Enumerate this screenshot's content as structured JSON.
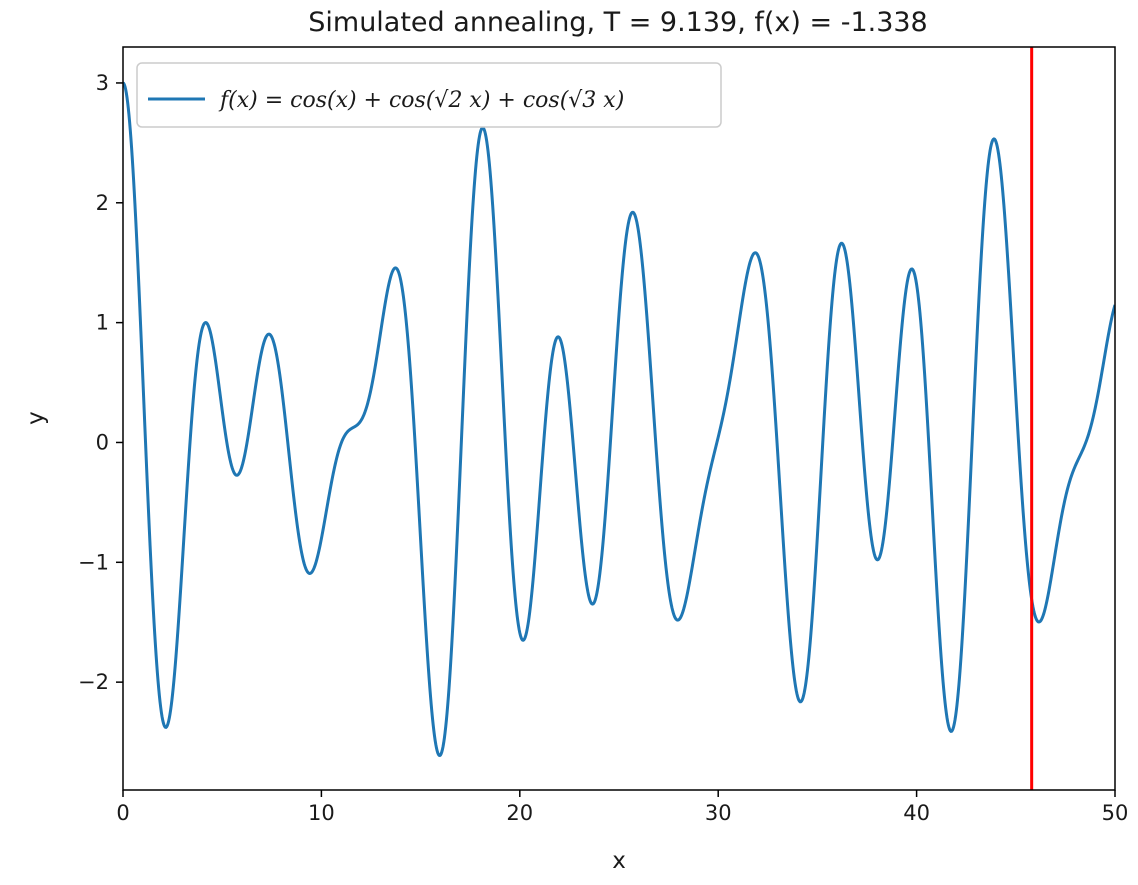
{
  "chart_data": {
    "type": "line",
    "title": "Simulated annealing, T = 9.139, f(x) = -1.338",
    "xlabel": "x",
    "ylabel": "y",
    "xlim": [
      0,
      50
    ],
    "ylim": [
      -2.9,
      3.3
    ],
    "xticks": [
      0,
      10,
      20,
      30,
      40,
      50
    ],
    "xtick_labels": [
      "0",
      "10",
      "20",
      "30",
      "40",
      "50"
    ],
    "yticks": [
      -2,
      -1,
      0,
      1,
      2,
      3
    ],
    "ytick_labels": [
      "−2",
      "−1",
      "0",
      "1",
      "2",
      "3"
    ],
    "grid": false,
    "legend_position": "upper-left",
    "series": [
      {
        "name": "f(x) = cos(x) + cos(√2 x) + cos(√3 x)",
        "color": "#1f77b4",
        "function": "cos(x) + cos(sqrt(2) x) + cos(sqrt(3) x)",
        "x_range": [
          0,
          50
        ],
        "sampled_points": [
          [
            0,
            3.0
          ],
          [
            2.1,
            -2.36
          ],
          [
            4.2,
            1.0
          ],
          [
            5.7,
            -0.26
          ],
          [
            7.3,
            0.91
          ],
          [
            9.4,
            -1.07
          ],
          [
            11.3,
            0.1
          ],
          [
            13.7,
            1.46
          ],
          [
            16.0,
            -2.6
          ],
          [
            18.1,
            2.62
          ],
          [
            20.1,
            -1.63
          ],
          [
            21.9,
            0.88
          ],
          [
            23.6,
            -1.32
          ],
          [
            25.7,
            1.92
          ],
          [
            27.9,
            -1.46
          ],
          [
            31.9,
            1.58
          ],
          [
            34.1,
            -2.14
          ],
          [
            36.2,
            1.66
          ],
          [
            38.0,
            -0.95
          ],
          [
            39.7,
            1.45
          ],
          [
            41.8,
            -2.39
          ],
          [
            44.0,
            2.53
          ],
          [
            46.0,
            -1.48
          ],
          [
            50.0,
            1.16
          ]
        ]
      }
    ],
    "marker_line": {
      "x": 45.8,
      "color": "#ff0000"
    }
  }
}
